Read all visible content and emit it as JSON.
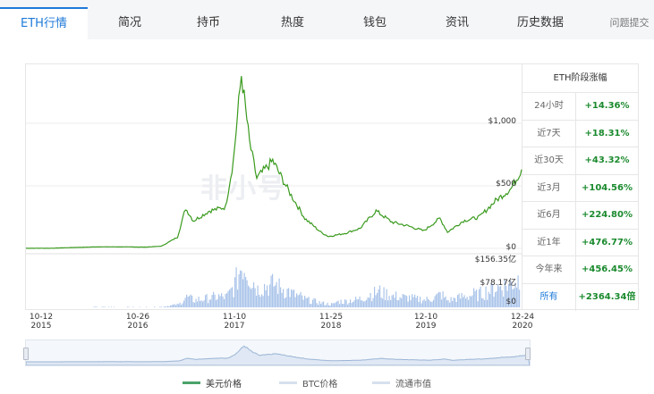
{
  "tabs": [
    {
      "label": "ETH行情",
      "active": true
    },
    {
      "label": "简况"
    },
    {
      "label": "持币"
    },
    {
      "label": "热度"
    },
    {
      "label": "钱包"
    },
    {
      "label": "资讯"
    },
    {
      "label": "历史数据"
    },
    {
      "label": "问题提交"
    }
  ],
  "watermark": "非小号",
  "chart": {
    "y_price_labels": [
      "$1,000",
      "$500",
      "$0"
    ],
    "y_volume_labels": [
      "$156.35亿",
      "$78.17亿",
      "$0"
    ],
    "x_labels": [
      {
        "day": "10-12",
        "year": "2015"
      },
      {
        "day": "10-26",
        "year": "2016"
      },
      {
        "day": "11-10",
        "year": "2017"
      },
      {
        "day": "11-25",
        "year": "2018"
      },
      {
        "day": "12-10",
        "year": "2019"
      },
      {
        "day": "12-24",
        "year": "2020"
      }
    ]
  },
  "stats": {
    "title": "ETH阶段涨幅",
    "rows": [
      {
        "label": "24小时",
        "value": "+14.36%"
      },
      {
        "label": "近7天",
        "value": "+18.31%"
      },
      {
        "label": "近30天",
        "value": "+43.32%"
      },
      {
        "label": "近3月",
        "value": "+104.56%"
      },
      {
        "label": "近6月",
        "value": "+224.80%"
      },
      {
        "label": "近1年",
        "value": "+476.77%"
      },
      {
        "label": "今年来",
        "value": "+456.45%"
      },
      {
        "label": "所有",
        "value": "+2364.34倍"
      }
    ]
  },
  "legend": {
    "usd": "美元价格",
    "btc": "BTC价格",
    "cap": "流通市值"
  },
  "colors": {
    "accent": "#1e7ad8",
    "price_line": "#3a9a1e",
    "volume": "#aac4ea",
    "positive": "#1b8a2e"
  },
  "chart_data": {
    "type": "line",
    "x": [
      "2015-10-12",
      "2016-01",
      "2016-04",
      "2016-07",
      "2016-10",
      "2017-01",
      "2017-03",
      "2017-05",
      "2017-06",
      "2017-07",
      "2017-09",
      "2017-11",
      "2017-12",
      "2018-01",
      "2018-02",
      "2018-03",
      "2018-05",
      "2018-07",
      "2018-09",
      "2018-11",
      "2018-12",
      "2019-02",
      "2019-04",
      "2019-06",
      "2019-08",
      "2019-10",
      "2019-12",
      "2020-02",
      "2020-03",
      "2020-05",
      "2020-07",
      "2020-09",
      "2020-11",
      "2020-12-24"
    ],
    "series": [
      {
        "values": [
          1,
          1,
          7,
          12,
          12,
          10,
          18,
          90,
          320,
          220,
          300,
          330,
          700,
          1390,
          850,
          560,
          700,
          460,
          240,
          130,
          95,
          120,
          160,
          300,
          210,
          180,
          140,
          240,
          130,
          220,
          250,
          380,
          480,
          630
        ]
      }
    ],
    "volume_axis_labels": [
      "$0",
      "$78.17亿",
      "$156.35亿"
    ],
    "ylim": [
      0,
      1400
    ],
    "ticks_y": [
      "$0",
      "$500",
      "$1,000"
    ],
    "ticks_x": [
      "10-12 2015",
      "10-26 2016",
      "11-10 2017",
      "11-25 2018",
      "12-10 2019",
      "12-24 2020"
    ],
    "grid": true
  }
}
